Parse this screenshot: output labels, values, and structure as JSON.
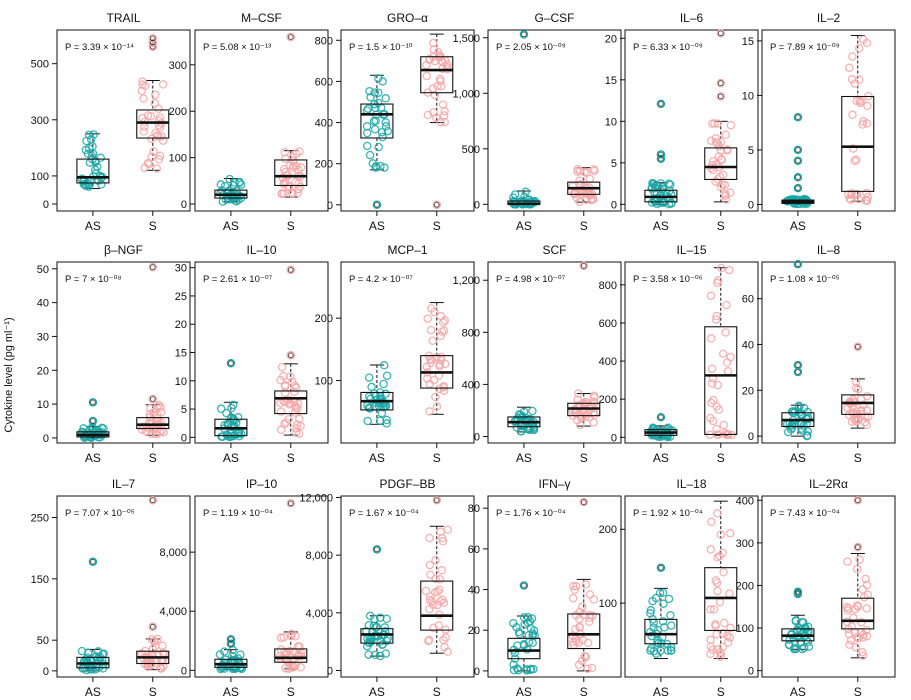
{
  "figure": {
    "ylabel": "Cytokine level (pg ml⁻¹)",
    "colors": {
      "AS": "#1aa6a6",
      "S": "#f4a6a6",
      "box": "#111111"
    }
  },
  "chart_data": [
    {
      "type": "box",
      "title": "TRAIL",
      "categories": [
        "AS",
        "S"
      ],
      "ylim": [
        -25,
        620
      ],
      "yticks": [
        0,
        100,
        300,
        500
      ],
      "ytick_labels": [
        "0",
        "100",
        "300",
        "500"
      ],
      "pvalue": "P = 3.39 × 10⁻¹⁴",
      "series": [
        {
          "name": "AS",
          "q1": 75,
          "median": 95,
          "q3": 160,
          "whisker_low": 55,
          "whisker_high": 250,
          "outliers": []
        },
        {
          "name": "S",
          "q1": 235,
          "median": 290,
          "q3": 335,
          "whisker_low": 120,
          "whisker_high": 440,
          "outliers": [
            560,
            575,
            590
          ]
        }
      ]
    },
    {
      "type": "box",
      "title": "M–CSF",
      "categories": [
        "AS",
        "S"
      ],
      "ylim": [
        -15,
        375
      ],
      "yticks": [
        0,
        100,
        200,
        300
      ],
      "ytick_labels": [
        "0",
        "100",
        "200",
        "300"
      ],
      "pvalue": "P = 5.08 × 10⁻¹³",
      "series": [
        {
          "name": "AS",
          "q1": 13,
          "median": 20,
          "q3": 30,
          "whisker_low": 5,
          "whisker_high": 55,
          "outliers": []
        },
        {
          "name": "S",
          "q1": 40,
          "median": 60,
          "q3": 95,
          "whisker_low": 15,
          "whisker_high": 115,
          "outliers": [
            360
          ]
        }
      ]
    },
    {
      "type": "box",
      "title": "GRO–α",
      "categories": [
        "AS",
        "S"
      ],
      "ylim": [
        -30,
        850
      ],
      "yticks": [
        0,
        200,
        400,
        600,
        800
      ],
      "ytick_labels": [
        "0",
        "200",
        "400",
        "600",
        "800"
      ],
      "pvalue": "P = 1.5 × 10⁻¹⁰",
      "series": [
        {
          "name": "AS",
          "q1": 325,
          "median": 440,
          "q3": 490,
          "whisker_low": 170,
          "whisker_high": 630,
          "outliers": [
            0
          ]
        },
        {
          "name": "S",
          "q1": 545,
          "median": 655,
          "q3": 720,
          "whisker_low": 400,
          "whisker_high": 830,
          "outliers": [
            0
          ]
        }
      ]
    },
    {
      "type": "box",
      "title": "G–CSF",
      "categories": [
        "AS",
        "S"
      ],
      "ylim": [
        -60,
        1570
      ],
      "yticks": [
        0,
        500,
        1000,
        1500
      ],
      "ytick_labels": [
        "0",
        "500",
        "1,000",
        "1,500"
      ],
      "pvalue": "P = 2.05 × 10⁻⁰⁹",
      "series": [
        {
          "name": "AS",
          "q1": 0,
          "median": 5,
          "q3": 30,
          "whisker_low": 0,
          "whisker_high": 120,
          "outliers": [
            1530
          ]
        },
        {
          "name": "S",
          "q1": 90,
          "median": 145,
          "q3": 200,
          "whisker_low": 20,
          "whisker_high": 330,
          "outliers": []
        }
      ]
    },
    {
      "type": "box",
      "title": "IL–6",
      "categories": [
        "AS",
        "S"
      ],
      "ylim": [
        -0.8,
        21
      ],
      "yticks": [
        0,
        5,
        10,
        15,
        20
      ],
      "ytick_labels": [
        "0",
        "5",
        "10",
        "15",
        "20"
      ],
      "pvalue": "P = 6.33 × 10⁻⁰⁹",
      "series": [
        {
          "name": "AS",
          "q1": 0.3,
          "median": 0.9,
          "q3": 1.7,
          "whisker_low": 0,
          "whisker_high": 2.6,
          "outliers": [
            5.5,
            6.0,
            12.1
          ]
        },
        {
          "name": "S",
          "q1": 3.0,
          "median": 4.5,
          "q3": 6.8,
          "whisker_low": 0.3,
          "whisker_high": 10,
          "outliers": [
            13,
            14.6,
            20.6
          ]
        }
      ]
    },
    {
      "type": "box",
      "title": "IL–2",
      "categories": [
        "AS",
        "S"
      ],
      "ylim": [
        -0.6,
        16
      ],
      "yticks": [
        0,
        5,
        10,
        15
      ],
      "ytick_labels": [
        "0",
        "5",
        "10",
        "15"
      ],
      "pvalue": "P = 7.89 × 10⁻⁰⁹",
      "series": [
        {
          "name": "AS",
          "q1": 0.1,
          "median": 0.25,
          "q3": 0.4,
          "whisker_low": 0,
          "whisker_high": 0.5,
          "outliers": [
            1.5,
            2.5,
            4.0,
            5.0,
            8.0
          ]
        },
        {
          "name": "S",
          "q1": 1.2,
          "median": 5.3,
          "q3": 9.9,
          "whisker_low": 0.3,
          "whisker_high": 15.5,
          "outliers": []
        }
      ]
    },
    {
      "type": "box",
      "title": "β–NGF",
      "categories": [
        "AS",
        "S"
      ],
      "ylim": [
        -1.5,
        52
      ],
      "yticks": [
        0,
        10,
        20,
        30,
        40,
        50
      ],
      "ytick_labels": [
        "0",
        "10",
        "20",
        "30",
        "40",
        "50"
      ],
      "pvalue": "P = 7 × 10⁻⁰⁸",
      "series": [
        {
          "name": "AS",
          "q1": 0.3,
          "median": 0.9,
          "q3": 1.8,
          "whisker_low": 0,
          "whisker_high": 3.3,
          "outliers": [
            5.0,
            10.5
          ]
        },
        {
          "name": "S",
          "q1": 2.8,
          "median": 3.9,
          "q3": 6.0,
          "whisker_low": 0.8,
          "whisker_high": 9.8,
          "outliers": [
            11.5,
            50.5
          ]
        }
      ]
    },
    {
      "type": "box",
      "title": "IL–10",
      "categories": [
        "AS",
        "S"
      ],
      "ylim": [
        -1,
        31
      ],
      "yticks": [
        0,
        5,
        10,
        15,
        20,
        25,
        30
      ],
      "ytick_labels": [
        "0",
        "5",
        "10",
        "15",
        "20",
        "25",
        "30"
      ],
      "pvalue": "P = 2.61 × 10⁻⁰⁷",
      "series": [
        {
          "name": "AS",
          "q1": 0.3,
          "median": 1.6,
          "q3": 3.2,
          "whisker_low": 0,
          "whisker_high": 6.2,
          "outliers": [
            13.1
          ]
        },
        {
          "name": "S",
          "q1": 4.2,
          "median": 6.9,
          "q3": 8.2,
          "whisker_low": 0.4,
          "whisker_high": 13.0,
          "outliers": [
            14.5,
            29.6
          ]
        }
      ]
    },
    {
      "type": "box",
      "title": "MCP–1",
      "categories": [
        "AS",
        "S"
      ],
      "ylim": [
        0,
        290
      ],
      "yticks": [
        100,
        200
      ],
      "ytick_labels": [
        "100",
        "200"
      ],
      "pvalue": "P = 4.2 × 10⁻⁰⁷",
      "series": [
        {
          "name": "AS",
          "q1": 53,
          "median": 67,
          "q3": 81,
          "whisker_low": 30,
          "whisker_high": 125,
          "outliers": []
        },
        {
          "name": "S",
          "q1": 88,
          "median": 113,
          "q3": 140,
          "whisker_low": 46,
          "whisker_high": 225,
          "outliers": []
        }
      ]
    },
    {
      "type": "box",
      "title": "SCF",
      "categories": [
        "AS",
        "S"
      ],
      "ylim": [
        -50,
        1340
      ],
      "yticks": [
        0,
        400,
        800,
        1200
      ],
      "ytick_labels": [
        "0",
        "400",
        "800",
        "1,200"
      ],
      "pvalue": "P = 4.98 × 10⁻⁰⁷",
      "series": [
        {
          "name": "AS",
          "q1": 75,
          "median": 110,
          "q3": 150,
          "whisker_low": 35,
          "whisker_high": 225,
          "outliers": []
        },
        {
          "name": "S",
          "q1": 160,
          "median": 215,
          "q3": 255,
          "whisker_low": 80,
          "whisker_high": 330,
          "outliers": [
            1310
          ]
        }
      ]
    },
    {
      "type": "box",
      "title": "IL–15",
      "categories": [
        "AS",
        "S"
      ],
      "ylim": [
        -30,
        920
      ],
      "yticks": [
        0,
        200,
        400,
        600,
        800
      ],
      "ytick_labels": [
        "0",
        "200",
        "400",
        "600",
        "800"
      ],
      "pvalue": "P = 3.58 × 10⁻⁰⁶",
      "series": [
        {
          "name": "AS",
          "q1": 10,
          "median": 25,
          "q3": 40,
          "whisker_low": 0,
          "whisker_high": 60,
          "outliers": [
            105
          ]
        },
        {
          "name": "S",
          "q1": 15,
          "median": 325,
          "q3": 580,
          "whisker_low": 10,
          "whisker_high": 890,
          "outliers": []
        }
      ]
    },
    {
      "type": "box",
      "title": "IL–8",
      "categories": [
        "AS",
        "S"
      ],
      "ylim": [
        -3,
        76
      ],
      "yticks": [
        0,
        20,
        40,
        60
      ],
      "ytick_labels": [
        "0",
        "20",
        "40",
        "60"
      ],
      "pvalue": "P = 1.08 × 10⁻⁰⁵",
      "series": [
        {
          "name": "AS",
          "q1": 4.2,
          "median": 7.0,
          "q3": 10.2,
          "whisker_low": 0,
          "whisker_high": 13.5,
          "outliers": [
            28,
            31,
            75
          ]
        },
        {
          "name": "S",
          "q1": 9.5,
          "median": 14.5,
          "q3": 18,
          "whisker_low": 3.5,
          "whisker_high": 25,
          "outliers": [
            39
          ]
        }
      ]
    },
    {
      "type": "box",
      "title": "IL–7",
      "categories": [
        "AS",
        "S"
      ],
      "ylim": [
        -10,
        285
      ],
      "yticks": [
        0,
        50,
        150,
        250
      ],
      "ytick_labels": [
        "0",
        "50",
        "150",
        "250"
      ],
      "pvalue": "P = 7.07 × 10⁻⁰⁵",
      "series": [
        {
          "name": "AS",
          "q1": 5,
          "median": 12,
          "q3": 22,
          "whisker_low": 0,
          "whisker_high": 35,
          "outliers": [
            178
          ]
        },
        {
          "name": "S",
          "q1": 12,
          "median": 22,
          "q3": 32,
          "whisker_low": 2,
          "whisker_high": 52,
          "outliers": [
            72,
            278
          ]
        }
      ]
    },
    {
      "type": "box",
      "title": "IP–10",
      "categories": [
        "AS",
        "S"
      ],
      "ylim": [
        -450,
        11800
      ],
      "yticks": [
        0,
        4000,
        8000
      ],
      "ytick_labels": [
        "0",
        "4,000",
        "8,000"
      ],
      "pvalue": "P = 1.19 × 10⁻⁰⁴",
      "series": [
        {
          "name": "AS",
          "q1": 200,
          "median": 420,
          "q3": 750,
          "whisker_low": 50,
          "whisker_high": 1400,
          "outliers": [
            1800,
            2100
          ]
        },
        {
          "name": "S",
          "q1": 550,
          "median": 850,
          "q3": 1450,
          "whisker_low": 100,
          "whisker_high": 2600,
          "outliers": [
            11300
          ]
        }
      ]
    },
    {
      "type": "box",
      "title": "PDGF–BB",
      "categories": [
        "AS",
        "S"
      ],
      "ylim": [
        -450,
        12100
      ],
      "yticks": [
        0,
        4000,
        8000,
        12000
      ],
      "ytick_labels": [
        "0",
        "4,000",
        "8,000",
        "12,000"
      ],
      "pvalue": "P = 1.67 × 10⁻⁰⁴",
      "series": [
        {
          "name": "AS",
          "q1": 1900,
          "median": 2500,
          "q3": 2900,
          "whisker_low": 1000,
          "whisker_high": 3800,
          "outliers": [
            8400
          ]
        },
        {
          "name": "S",
          "q1": 2800,
          "median": 3800,
          "q3": 6200,
          "whisker_low": 1200,
          "whisker_high": 10000,
          "outliers": [
            11800
          ]
        }
      ]
    },
    {
      "type": "box",
      "title": "IFN–γ",
      "categories": [
        "AS",
        "S"
      ],
      "ylim": [
        -3,
        86
      ],
      "yticks": [
        0,
        20,
        40,
        60,
        80
      ],
      "ytick_labels": [
        "0",
        "20",
        "40",
        "60",
        "80"
      ],
      "pvalue": "P = 1.76 × 10⁻⁰⁴",
      "series": [
        {
          "name": "AS",
          "q1": 6,
          "median": 10,
          "q3": 16,
          "whisker_low": 0,
          "whisker_high": 27,
          "outliers": [
            42
          ]
        },
        {
          "name": "S",
          "q1": 11,
          "median": 18,
          "q3": 28,
          "whisker_low": 0,
          "whisker_high": 45,
          "outliers": [
            83
          ]
        }
      ]
    },
    {
      "type": "box",
      "title": "IL–18",
      "categories": [
        "AS",
        "S"
      ],
      "ylim": [
        0,
        245
      ],
      "yticks": [
        100,
        200
      ],
      "ytick_labels": [
        "100",
        "200"
      ],
      "pvalue": "P = 1.92 × 10⁻⁰⁴",
      "series": [
        {
          "name": "AS",
          "q1": 45,
          "median": 58,
          "q3": 78,
          "whisker_low": 25,
          "whisker_high": 120,
          "outliers": [
            148
          ]
        },
        {
          "name": "S",
          "q1": 63,
          "median": 107,
          "q3": 148,
          "whisker_low": 25,
          "whisker_high": 238,
          "outliers": []
        }
      ]
    },
    {
      "type": "box",
      "title": "IL–2Rα",
      "categories": [
        "AS",
        "S"
      ],
      "ylim": [
        -15,
        410
      ],
      "yticks": [
        0,
        100,
        200,
        300,
        400
      ],
      "ytick_labels": [
        "0",
        "100",
        "200",
        "300",
        "400"
      ],
      "pvalue": "P = 7.43 × 10⁻⁰⁴",
      "series": [
        {
          "name": "AS",
          "q1": 70,
          "median": 82,
          "q3": 98,
          "whisker_low": 50,
          "whisker_high": 130,
          "outliers": [
            180,
            185
          ]
        },
        {
          "name": "S",
          "q1": 98,
          "median": 117,
          "q3": 170,
          "whisker_low": 30,
          "whisker_high": 275,
          "outliers": [
            290,
            400
          ]
        }
      ]
    }
  ]
}
